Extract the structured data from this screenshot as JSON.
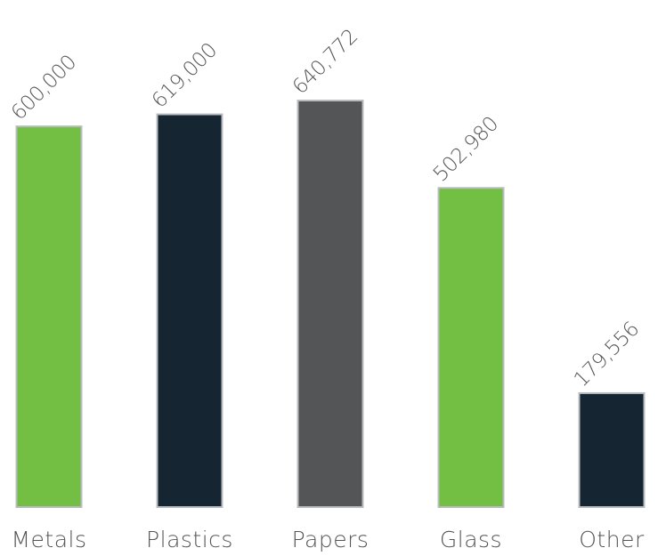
{
  "chart_data": {
    "type": "bar",
    "categories": [
      "Metals",
      "Plastics",
      "Papers",
      "Glass",
      "Other"
    ],
    "values": [
      600000,
      619000,
      640772,
      502980,
      179556
    ],
    "data_labels": [
      "600,000",
      "619,000",
      "640,772",
      "502,980",
      "179,556"
    ],
    "bar_colors": [
      "#72bf44",
      "#152532",
      "#545557",
      "#72bf44",
      "#152532"
    ],
    "title": "",
    "xlabel": "",
    "ylabel": "",
    "ylim": [
      0,
      660000
    ],
    "grid": false,
    "legend": "none"
  },
  "colors": {
    "background": "#ffffff",
    "bar_border": "#b9bcbf",
    "label_text": "#555555"
  }
}
